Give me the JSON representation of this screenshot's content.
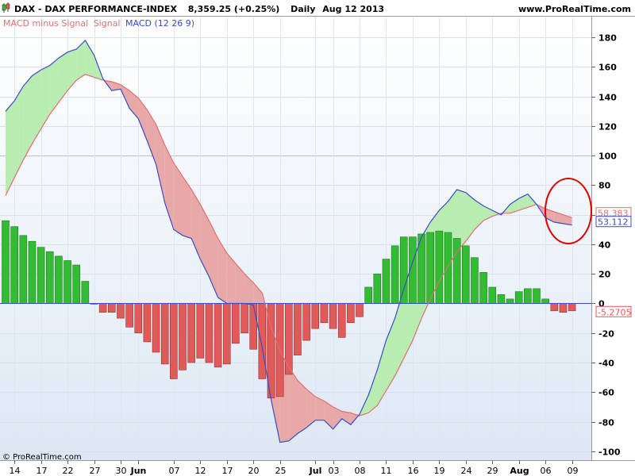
{
  "header": {
    "symbol": "DAX - DAX PERFORMANCE-INDEX",
    "price": "8,359.25 (+0.25%)",
    "period": "Daily",
    "date": "Aug 12 2013",
    "site": "www.ProRealTime.com"
  },
  "indicator_title": {
    "part1": "MACD minus Signal",
    "part2": "Signal",
    "part3": "MACD (12 26 9)"
  },
  "copyright": "© ProRealTime.com",
  "colors": {
    "macd_line": "#3a4cc8",
    "signal_line": "#e07070",
    "bull_fill": "#b8ecb0",
    "bear_fill": "#e8a8a8",
    "hist_positive": "#33bb33",
    "hist_negative": "#e05a5a",
    "annotation_circle": "#dd0000",
    "plot_bg_top": "#ffffff",
    "plot_bg_bottom": "#dde8f4"
  },
  "chart_data": {
    "type": "line",
    "ylim": [
      -106,
      194
    ],
    "y_ticks": [
      "180",
      "160",
      "140",
      "120",
      "100",
      "80",
      "60",
      "40",
      "20",
      "0",
      "-20",
      "-40",
      "-60",
      "-80",
      "-100"
    ],
    "x_ticks": [
      {
        "label": "14",
        "i": 1
      },
      {
        "label": "17",
        "i": 4
      },
      {
        "label": "22",
        "i": 7
      },
      {
        "label": "27",
        "i": 10
      },
      {
        "label": "30",
        "i": 13
      },
      {
        "label": "Jun",
        "i": 15,
        "bold": true
      },
      {
        "label": "07",
        "i": 19
      },
      {
        "label": "12",
        "i": 22
      },
      {
        "label": "17",
        "i": 25
      },
      {
        "label": "20",
        "i": 28
      },
      {
        "label": "25",
        "i": 31
      },
      {
        "label": "Jul",
        "i": 35,
        "bold": true
      },
      {
        "label": "03",
        "i": 37
      },
      {
        "label": "08",
        "i": 40
      },
      {
        "label": "11",
        "i": 43
      },
      {
        "label": "16",
        "i": 46
      },
      {
        "label": "19",
        "i": 49
      },
      {
        "label": "24",
        "i": 52
      },
      {
        "label": "29",
        "i": 55
      },
      {
        "label": "Aug",
        "i": 58,
        "bold": true
      },
      {
        "label": "06",
        "i": 61
      },
      {
        "label": "09",
        "i": 64
      }
    ],
    "last_values": {
      "signal": "58.383",
      "macd": "53.112",
      "histogram": "-5.2705"
    },
    "series": [
      {
        "name": "MACD (12 26 9)",
        "values": [
          130,
          137,
          147,
          154,
          158,
          161,
          166,
          170,
          172,
          178,
          168,
          152,
          144,
          145,
          132,
          125,
          110,
          94,
          68,
          50,
          46,
          44,
          30,
          18,
          4,
          0,
          0,
          0,
          -1,
          -30,
          -65,
          -94,
          -93,
          -88,
          -84,
          -79,
          -79,
          -85,
          -78,
          -82,
          -75,
          -62,
          -45,
          -25,
          -10,
          10,
          28,
          45,
          55,
          63,
          69,
          77,
          75,
          70,
          66,
          63,
          60,
          67,
          71,
          74,
          67,
          58,
          55,
          54,
          53
        ]
      },
      {
        "name": "Signal",
        "values": [
          73,
          85,
          97,
          108,
          118,
          128,
          136,
          144,
          151,
          155,
          153,
          151,
          150,
          148,
          144,
          139,
          131,
          121,
          107,
          95,
          86,
          77,
          67,
          56,
          44,
          34,
          27,
          20,
          14,
          7,
          -16,
          -32,
          -43,
          -52,
          -58,
          -63,
          -66,
          -70,
          -73,
          -74,
          -76,
          -74,
          -69,
          -59,
          -49,
          -37,
          -25,
          -10,
          3,
          15,
          25,
          35,
          42,
          50,
          56,
          59,
          61,
          61,
          63,
          65,
          67,
          64,
          62,
          60,
          58
        ]
      },
      {
        "name": "MACD minus Signal",
        "values": [
          56,
          52,
          46,
          42,
          38,
          35,
          32,
          29,
          26,
          15,
          0,
          -6,
          -6,
          -10,
          -16,
          -20,
          -26,
          -33,
          -41,
          -51,
          -45,
          -40,
          -37,
          -40,
          -43,
          -41,
          -27,
          -20,
          -31,
          -51,
          -64,
          -63,
          -48,
          -35,
          -25,
          -17,
          -13,
          -17,
          -23,
          -13,
          -9,
          11,
          20,
          30,
          39,
          45,
          45,
          47,
          48,
          49,
          48,
          44,
          39,
          31,
          21,
          11,
          6,
          3,
          8,
          10,
          10,
          3,
          -5,
          -6,
          -5
        ]
      }
    ]
  }
}
